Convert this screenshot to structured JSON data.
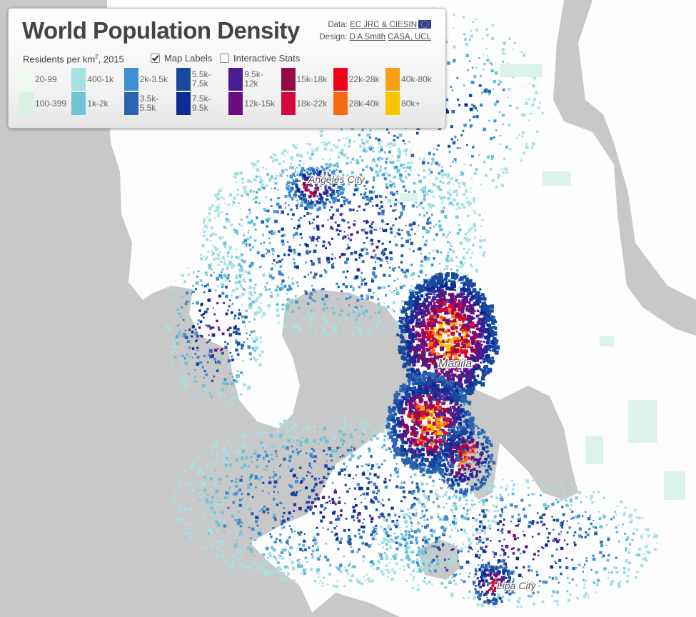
{
  "panel": {
    "title": "World Population Density",
    "data_prefix": "Data:",
    "data_source": "EC JRC & CIESIN",
    "design_prefix": "Design:",
    "designer": "D A Smith",
    "institution": "CASA, UCL",
    "subtitle_main": "Residents per km",
    "subtitle_sup": "2",
    "subtitle_year": ", 2015",
    "map_labels": {
      "label": "Map Labels",
      "checked": true
    },
    "interactive_stats": {
      "label": "Interactive Stats",
      "checked": false
    }
  },
  "legend": [
    {
      "label": "20-99",
      "color": "#eefaf1"
    },
    {
      "label": "100-399",
      "color": "#d8f3e6"
    },
    {
      "label": "400-1k",
      "color": "#a5e1e3"
    },
    {
      "label": "1k-2k",
      "color": "#6cc4d7"
    },
    {
      "label": "2k-3.5k",
      "color": "#3f8fd2"
    },
    {
      "label": "3.5k-5.5k",
      "color": "#2a64b0"
    },
    {
      "label": "5.5k-7.5k",
      "color": "#18499e"
    },
    {
      "label": "7.5k-9.5k",
      "color": "#0c2d94"
    },
    {
      "label": "9.5k-12k",
      "color": "#4a1d91"
    },
    {
      "label": "12k-15k",
      "color": "#6a0f83"
    },
    {
      "label": "15k-18k",
      "color": "#930a46"
    },
    {
      "label": "18k-22k",
      "color": "#d30a3d"
    },
    {
      "label": "22k-28k",
      "color": "#f2001a"
    },
    {
      "label": "28k-40k",
      "color": "#f86a11"
    },
    {
      "label": "40k-80k",
      "color": "#f99f12"
    },
    {
      "label": "80k+",
      "color": "#fbc400"
    }
  ],
  "map": {
    "cities": [
      "Angeles City",
      "Manila",
      "Lipa City"
    ],
    "colors": {
      "sea": "#c8c8c8",
      "land": "#fdfdfd"
    }
  }
}
